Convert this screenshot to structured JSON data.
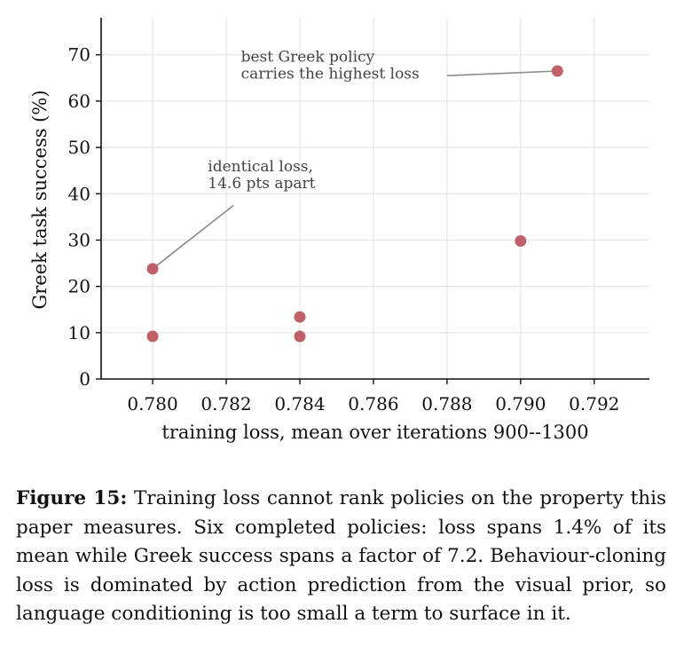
{
  "chart_data": {
    "type": "scatter",
    "xlabel": "training loss, mean over iterations 900--1300",
    "ylabel": "Greek task success (%)",
    "xlim": [
      0.7786,
      0.7935
    ],
    "ylim": [
      0,
      78
    ],
    "xticks": [
      0.78,
      0.782,
      0.784,
      0.786,
      0.788,
      0.79,
      0.792
    ],
    "xtick_labels": [
      "0.780",
      "0.782",
      "0.784",
      "0.786",
      "0.788",
      "0.790",
      "0.792"
    ],
    "yticks": [
      0,
      10,
      20,
      30,
      40,
      50,
      60,
      70
    ],
    "ytick_labels": [
      "0",
      "10",
      "20",
      "30",
      "40",
      "50",
      "60",
      "70"
    ],
    "grid": true,
    "point_color": "#c0616a",
    "points": [
      {
        "x": 0.78,
        "y": 23.8
      },
      {
        "x": 0.78,
        "y": 9.2
      },
      {
        "x": 0.784,
        "y": 13.4
      },
      {
        "x": 0.784,
        "y": 9.2
      },
      {
        "x": 0.79,
        "y": 29.8
      },
      {
        "x": 0.791,
        "y": 66.5
      }
    ],
    "annotations": [
      {
        "lines": [
          "best Greek policy",
          "carries the highest loss"
        ],
        "text_x": 0.7824,
        "text_y": 68.5,
        "arrow_from_x": 0.788,
        "arrow_from_y": 65.5,
        "arrow_to_x": 0.791,
        "arrow_to_y": 66.5
      },
      {
        "lines": [
          "identical loss,",
          "14.6 pts apart"
        ],
        "text_x": 0.7815,
        "text_y": 44.8,
        "arrow_from_x": 0.7822,
        "arrow_from_y": 37.5,
        "arrow_to_x": 0.78,
        "arrow_to_y": 23.8
      }
    ]
  },
  "caption": {
    "label": "Figure 15:",
    "text": "Training loss cannot rank policies on the property this paper measures. Six completed policies: loss spans 1.4% of its mean while Greek success spans a factor of 7.2. Behaviour-cloning loss is dominated by action prediction from the visual prior, so language conditioning is too small a term to surface in it."
  }
}
